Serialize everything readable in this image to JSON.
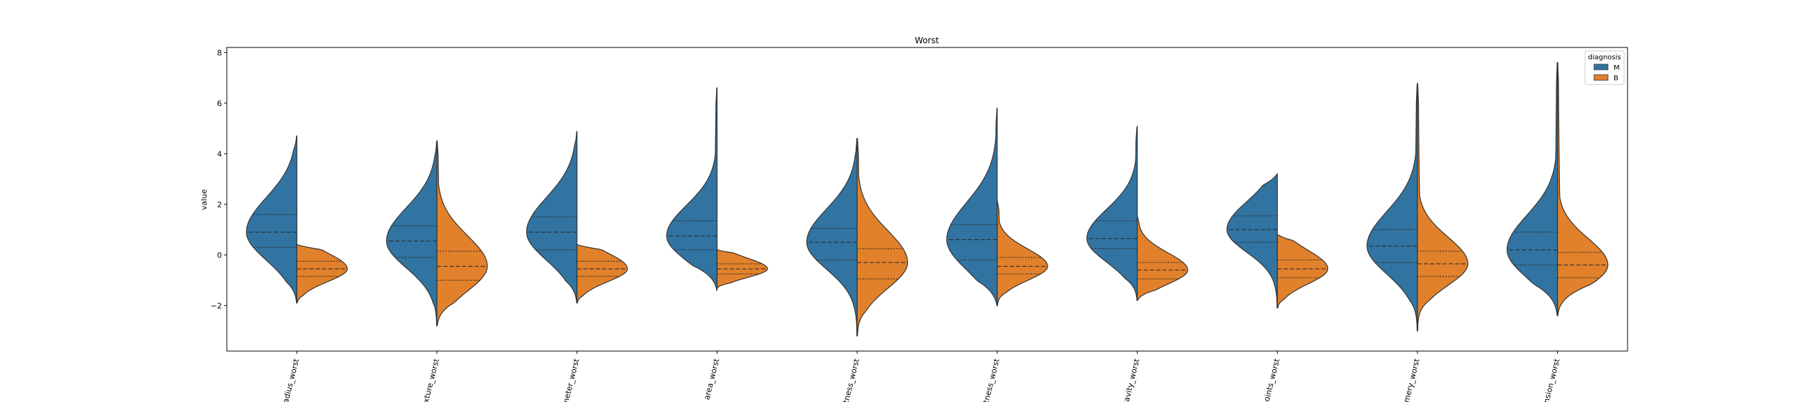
{
  "chart_data": {
    "type": "violin",
    "title": "Worst",
    "xlabel": "",
    "ylabel": "value",
    "ylim": [
      -3.8,
      8.2
    ],
    "yticks": [
      -2,
      0,
      2,
      4,
      6,
      8
    ],
    "ytick_labels": [
      "−2",
      "0",
      "2",
      "4",
      "6",
      "8"
    ],
    "grid": false,
    "legend": {
      "title": "diagnosis",
      "placement": "top-right",
      "entries": [
        {
          "name": "M",
          "color": "#3274a1"
        },
        {
          "name": "B",
          "color": "#e1812c"
        }
      ]
    },
    "categories": [
      "radius_worst",
      "exture_worst",
      "meter_worst",
      "area_worst",
      "tness_worst",
      "ctness_worst",
      "cavity_worst",
      "points_worst",
      "nmery_worst",
      "nsion_worst"
    ],
    "series": [
      {
        "name": "M",
        "side": "left",
        "color": "#3274a1",
        "ranges": [
          [
            -1.9,
            4.7
          ],
          [
            -2.8,
            4.5
          ],
          [
            -1.9,
            4.9
          ],
          [
            -1.4,
            6.6
          ],
          [
            -3.2,
            4.6
          ],
          [
            -2.0,
            5.8
          ],
          [
            -1.8,
            5.1
          ],
          [
            -2.1,
            3.2
          ],
          [
            -3.0,
            6.8
          ],
          [
            -2.4,
            7.6
          ]
        ],
        "q1": [
          0.3,
          -0.1,
          0.2,
          0.2,
          -0.2,
          -0.2,
          0.25,
          0.5,
          -0.3,
          -0.4
        ],
        "median": [
          0.9,
          0.55,
          0.9,
          0.75,
          0.5,
          0.6,
          0.65,
          1.0,
          0.35,
          0.2
        ],
        "q3": [
          1.6,
          1.15,
          1.5,
          1.35,
          1.05,
          1.2,
          1.35,
          1.55,
          1.0,
          0.9
        ]
      },
      {
        "name": "B",
        "side": "right",
        "color": "#e1812c",
        "ranges": [
          [
            -1.9,
            0.4
          ],
          [
            -2.8,
            4.5
          ],
          [
            -1.9,
            0.4
          ],
          [
            -1.3,
            0.2
          ],
          [
            -3.2,
            4.6
          ],
          [
            -2.0,
            2.1
          ],
          [
            -1.8,
            1.5
          ],
          [
            -2.1,
            0.8
          ],
          [
            -3.0,
            6.8
          ],
          [
            -2.4,
            7.6
          ]
        ],
        "q1": [
          -0.85,
          -1.0,
          -0.85,
          -0.75,
          -0.95,
          -0.75,
          -0.95,
          -0.9,
          -0.85,
          -0.9
        ],
        "median": [
          -0.55,
          -0.45,
          -0.55,
          -0.55,
          -0.3,
          -0.45,
          -0.6,
          -0.55,
          -0.35,
          -0.4
        ],
        "q3": [
          -0.25,
          0.15,
          -0.25,
          -0.35,
          0.25,
          -0.1,
          -0.3,
          -0.2,
          0.15,
          0.1
        ]
      }
    ]
  }
}
